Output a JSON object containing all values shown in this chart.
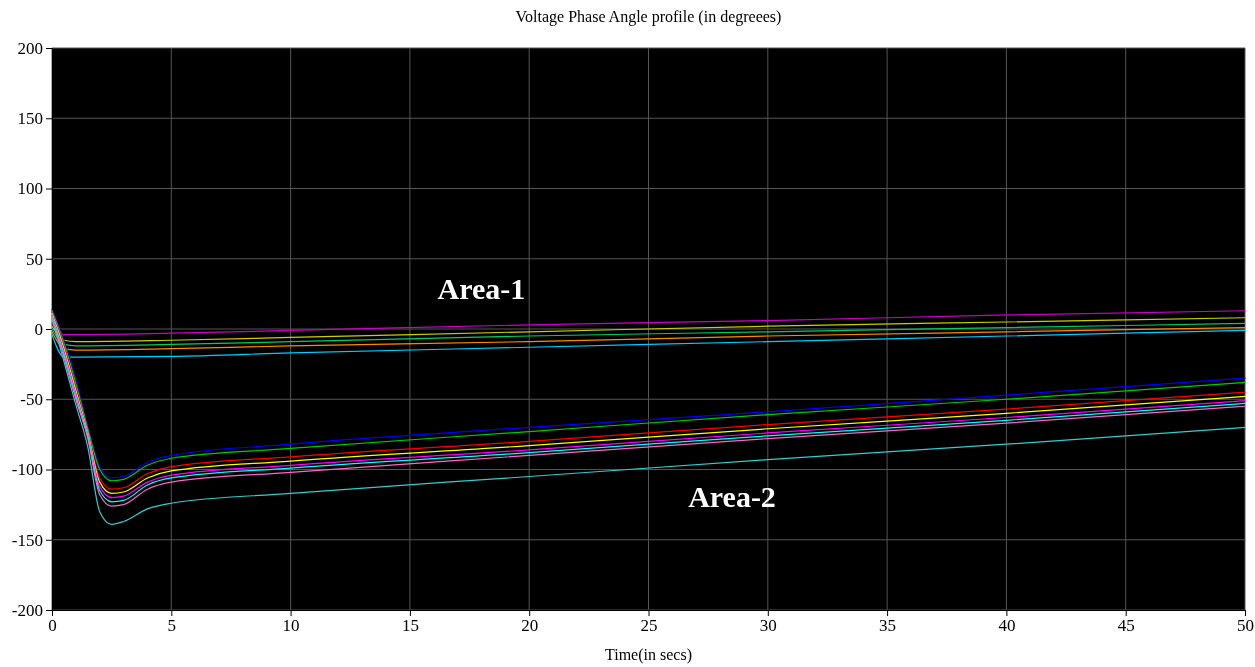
{
  "chart_data": {
    "type": "line",
    "title": "Voltage Phase Angle profile (in degreees)",
    "xlabel": "Time(in secs)",
    "xlim": [
      0,
      50
    ],
    "xticks": [
      0,
      5,
      10,
      15,
      20,
      25,
      30,
      35,
      40,
      45,
      50
    ],
    "ylim": [
      -200,
      200
    ],
    "yticks": [
      -200,
      -150,
      -100,
      -50,
      0,
      50,
      100,
      150,
      200
    ],
    "grid": true,
    "annotations": [
      "Area-1",
      "Area-2"
    ],
    "series": [
      {
        "color": "#cc00cc",
        "x": [
          0,
          0.5,
          1,
          5,
          10,
          20,
          30,
          40,
          50
        ],
        "values": [
          4,
          -4,
          -4,
          -3,
          -1,
          3,
          6,
          10,
          13
        ]
      },
      {
        "color": "#cccc00",
        "x": [
          0,
          0.5,
          1,
          5,
          10,
          20,
          30,
          40,
          50
        ],
        "values": [
          2,
          -8,
          -9,
          -8,
          -6,
          -2,
          2,
          5,
          8
        ]
      },
      {
        "color": "#00cc66",
        "x": [
          0,
          0.5,
          1,
          5,
          10,
          20,
          30,
          40,
          50
        ],
        "values": [
          0,
          -11,
          -12,
          -11,
          -9,
          -5,
          -2,
          1,
          4
        ]
      },
      {
        "color": "#ff8800",
        "x": [
          0,
          0.5,
          1,
          5,
          10,
          20,
          30,
          40,
          50
        ],
        "values": [
          -2,
          -14,
          -15,
          -14,
          -12,
          -9,
          -5,
          -2,
          1
        ]
      },
      {
        "color": "#00ccff",
        "x": [
          0,
          0.5,
          1,
          5,
          10,
          20,
          30,
          40,
          50
        ],
        "values": [
          -4,
          -20,
          -20,
          -19.5,
          -17,
          -13,
          -9,
          -5,
          -1
        ]
      },
      {
        "color": "#0000ff",
        "x": [
          0,
          0.5,
          1,
          1.5,
          2,
          2.5,
          3,
          4,
          5,
          10,
          20,
          30,
          40,
          50
        ],
        "values": [
          14,
          -8,
          -36,
          -70,
          -98,
          -106,
          -105,
          -95,
          -90,
          -82,
          -70,
          -59,
          -47,
          -35
        ]
      },
      {
        "color": "#00cc00",
        "x": [
          0,
          0.5,
          1,
          1.5,
          2,
          2.5,
          3,
          4,
          5,
          10,
          20,
          30,
          40,
          50
        ],
        "values": [
          13,
          -10,
          -39,
          -71,
          -100,
          -108,
          -107,
          -97,
          -92,
          -85,
          -73,
          -61,
          -50,
          -38
        ]
      },
      {
        "color": "#ff0000",
        "x": [
          0,
          0.5,
          1,
          1.5,
          2,
          2.5,
          3,
          4,
          5,
          10,
          20,
          30,
          40,
          50
        ],
        "values": [
          12,
          -12,
          -42,
          -73,
          -106,
          -114,
          -113,
          -103,
          -98,
          -91,
          -80,
          -68,
          -57,
          -45
        ]
      },
      {
        "color": "#ffff00",
        "x": [
          0,
          0.5,
          1,
          1.5,
          2,
          2.5,
          3,
          4,
          5,
          10,
          20,
          30,
          40,
          50
        ],
        "values": [
          11,
          -14,
          -44,
          -74,
          -109,
          -117,
          -116,
          -106,
          -101,
          -94,
          -83,
          -71,
          -60,
          -48
        ]
      },
      {
        "color": "#ff00ff",
        "x": [
          0,
          0.5,
          1,
          1.5,
          2,
          2.5,
          3,
          4,
          5,
          10,
          20,
          30,
          40,
          50
        ],
        "values": [
          10,
          -16,
          -46,
          -75,
          -112,
          -120,
          -119,
          -109,
          -104,
          -97,
          -86,
          -74,
          -63,
          -51
        ]
      },
      {
        "color": "#00ffff",
        "x": [
          0,
          0.5,
          1,
          1.5,
          2,
          2.5,
          3,
          4,
          5,
          10,
          20,
          30,
          40,
          50
        ],
        "values": [
          9,
          -18,
          -48,
          -76,
          -115,
          -123,
          -122,
          -111,
          -106,
          -99,
          -88,
          -76,
          -65,
          -53
        ]
      },
      {
        "color": "#ff66cc",
        "x": [
          0,
          0.5,
          1,
          1.5,
          2,
          2.5,
          3,
          4,
          5,
          10,
          20,
          30,
          40,
          50
        ],
        "values": [
          8,
          -20,
          -50,
          -78,
          -118,
          -126,
          -125,
          -114,
          -109,
          -102,
          -90,
          -78,
          -67,
          -55
        ]
      },
      {
        "color": "#33cccc",
        "x": [
          0,
          0.5,
          1,
          1.5,
          2,
          2.5,
          3,
          4,
          5,
          10,
          20,
          30,
          40,
          50
        ],
        "values": [
          7,
          -23,
          -54,
          -84,
          -130,
          -139,
          -137,
          -128,
          -124,
          -117,
          -105,
          -93,
          -82,
          -70
        ]
      }
    ]
  }
}
